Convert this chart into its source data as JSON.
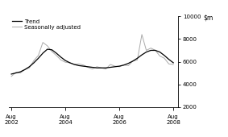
{
  "title": "",
  "ylim": [
    2000,
    10000
  ],
  "yticks": [
    2000,
    4000,
    6000,
    8000,
    10000
  ],
  "xlim_start": 2002.5,
  "xlim_end": 2008.75,
  "xtick_positions": [
    2002.583,
    2004.583,
    2006.583,
    2008.583
  ],
  "xtick_labels": [
    "Aug\n2002",
    "Aug\n2004",
    "Aug\n2006",
    "Aug\n2008"
  ],
  "legend_trend": "Trend",
  "legend_seasonal": "Seasonally adjusted",
  "trend_color": "#000000",
  "seasonal_color": "#aaaaaa",
  "background_color": "#ffffff",
  "trend_data": [
    [
      2002.583,
      4900
    ],
    [
      2002.75,
      5000
    ],
    [
      2002.917,
      5100
    ],
    [
      2003.083,
      5300
    ],
    [
      2003.25,
      5550
    ],
    [
      2003.417,
      5900
    ],
    [
      2003.583,
      6300
    ],
    [
      2003.75,
      6750
    ],
    [
      2003.917,
      7100
    ],
    [
      2004.083,
      7050
    ],
    [
      2004.25,
      6750
    ],
    [
      2004.417,
      6400
    ],
    [
      2004.583,
      6100
    ],
    [
      2004.75,
      5900
    ],
    [
      2004.917,
      5750
    ],
    [
      2005.083,
      5650
    ],
    [
      2005.25,
      5600
    ],
    [
      2005.417,
      5550
    ],
    [
      2005.583,
      5500
    ],
    [
      2005.75,
      5450
    ],
    [
      2005.917,
      5450
    ],
    [
      2006.083,
      5450
    ],
    [
      2006.25,
      5500
    ],
    [
      2006.417,
      5550
    ],
    [
      2006.583,
      5600
    ],
    [
      2006.75,
      5700
    ],
    [
      2006.917,
      5850
    ],
    [
      2007.083,
      6050
    ],
    [
      2007.25,
      6300
    ],
    [
      2007.417,
      6600
    ],
    [
      2007.583,
      6850
    ],
    [
      2007.75,
      7000
    ],
    [
      2007.917,
      7000
    ],
    [
      2008.083,
      6850
    ],
    [
      2008.25,
      6550
    ],
    [
      2008.417,
      6200
    ],
    [
      2008.583,
      5900
    ]
  ],
  "seasonal_data": [
    [
      2002.583,
      4700
    ],
    [
      2002.75,
      5050
    ],
    [
      2002.917,
      5000
    ],
    [
      2003.083,
      5300
    ],
    [
      2003.25,
      5450
    ],
    [
      2003.417,
      6100
    ],
    [
      2003.583,
      6550
    ],
    [
      2003.75,
      7700
    ],
    [
      2003.917,
      7400
    ],
    [
      2004.083,
      6900
    ],
    [
      2004.25,
      6550
    ],
    [
      2004.417,
      6150
    ],
    [
      2004.583,
      5950
    ],
    [
      2004.75,
      5900
    ],
    [
      2004.917,
      5750
    ],
    [
      2005.083,
      5800
    ],
    [
      2005.25,
      5700
    ],
    [
      2005.417,
      5500
    ],
    [
      2005.583,
      5350
    ],
    [
      2005.75,
      5550
    ],
    [
      2005.917,
      5450
    ],
    [
      2006.083,
      5350
    ],
    [
      2006.25,
      5750
    ],
    [
      2006.417,
      5600
    ],
    [
      2006.583,
      5550
    ],
    [
      2006.75,
      5700
    ],
    [
      2006.917,
      5650
    ],
    [
      2007.083,
      6050
    ],
    [
      2007.25,
      6150
    ],
    [
      2007.417,
      8400
    ],
    [
      2007.583,
      7000
    ],
    [
      2007.75,
      7200
    ],
    [
      2007.917,
      7000
    ],
    [
      2008.083,
      6500
    ],
    [
      2008.25,
      6300
    ],
    [
      2008.417,
      5800
    ],
    [
      2008.583,
      5750
    ]
  ]
}
